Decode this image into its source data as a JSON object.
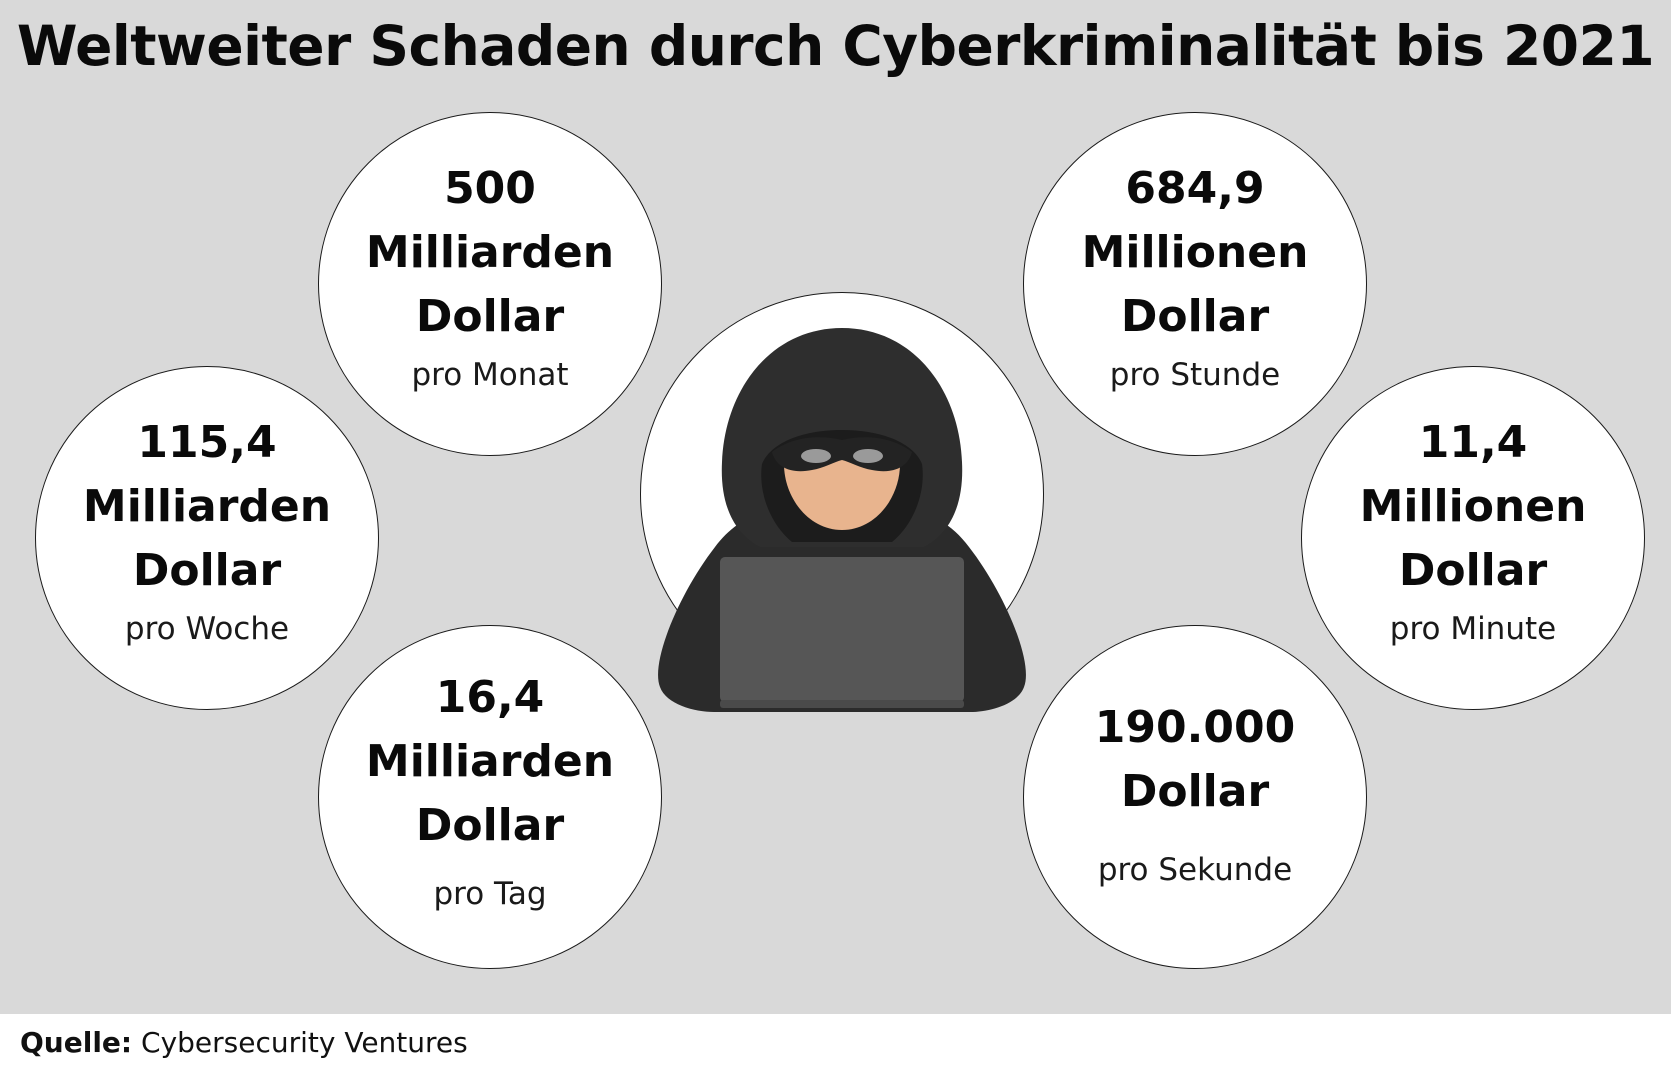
{
  "title": "Weltweiter Schaden durch Cyberkriminalität bis 2021",
  "bubbles": {
    "monat": {
      "line1": "500",
      "line2": "Milliarden",
      "line3": "Dollar",
      "period": "pro Monat"
    },
    "stunde": {
      "line1": "684,9",
      "line2": "Millionen",
      "line3": "Dollar",
      "period": "pro Stunde"
    },
    "woche": {
      "line1": "115,4",
      "line2": "Milliarden",
      "line3": "Dollar",
      "period": "pro Woche"
    },
    "minute": {
      "line1": "11,4",
      "line2": "Millionen",
      "line3": "Dollar",
      "period": "pro Minute"
    },
    "tag": {
      "line1": "16,4",
      "line2": "Milliarden",
      "line3": "Dollar",
      "period": "pro Tag"
    },
    "sekunde": {
      "line1": "190.000",
      "line2": "Dollar",
      "period": "pro Sekunde"
    }
  },
  "illustration": {
    "icon": "hooded-hacker-laptop-icon"
  },
  "footer": {
    "label": "Quelle:",
    "source": "Cybersecurity Ventures"
  },
  "colors": {
    "background": "#d9d9d9",
    "hood": "#2b2b2b",
    "face": "#e8b48e",
    "laptop": "#565656"
  }
}
